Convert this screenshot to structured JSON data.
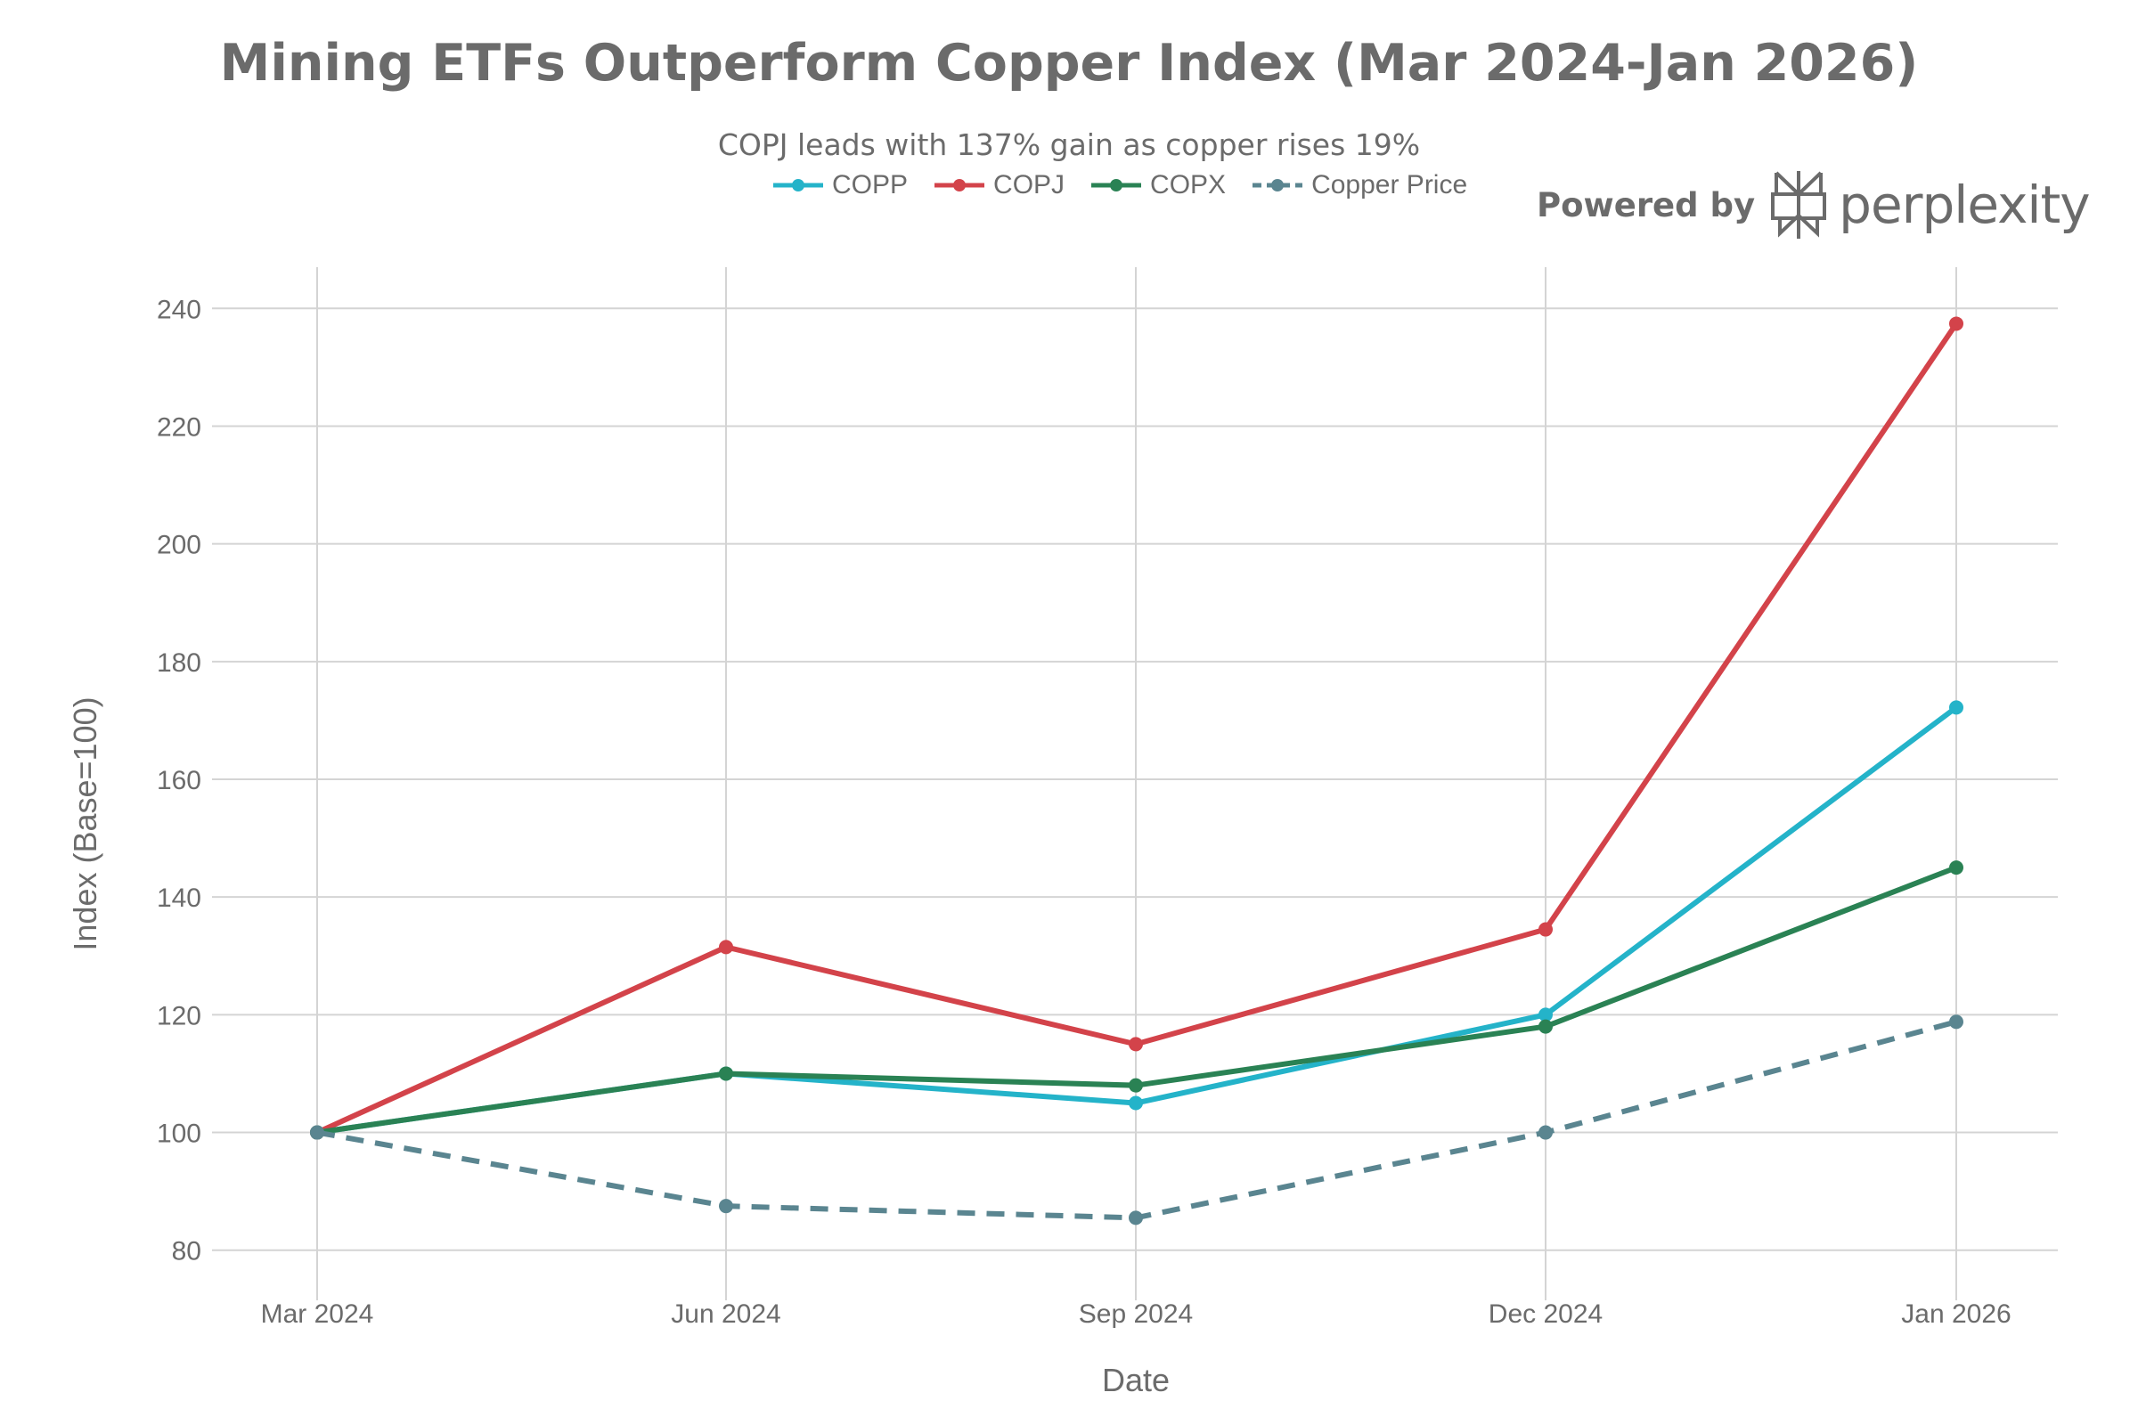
{
  "title": "Mining ETFs Outperform Copper Index (Mar 2024-Jan 2026)",
  "subtitle": "COPJ leads with 137% gain as copper rises 19%",
  "brand": {
    "prefix": "Powered by",
    "name": "perplexity",
    "icon": "perplexity-logo-icon"
  },
  "chart_data": {
    "type": "line",
    "x": [
      "Mar 2024",
      "Jun 2024",
      "Sep 2024",
      "Dec 2024",
      "Jan 2026"
    ],
    "xlabel": "Date",
    "ylabel": "Index (Base=100)",
    "ylim": [
      73,
      247
    ],
    "yticks": [
      80,
      100,
      120,
      140,
      160,
      180,
      200,
      220,
      240
    ],
    "grid": true,
    "legend_position": "top-center",
    "series": [
      {
        "name": "COPP",
        "color": "#24b3c9",
        "dash": "solid",
        "values": [
          100,
          110,
          105,
          120,
          172.2
        ]
      },
      {
        "name": "COPJ",
        "color": "#d3434a",
        "dash": "solid",
        "values": [
          100,
          131.5,
          115,
          134.5,
          237.4
        ]
      },
      {
        "name": "COPX",
        "color": "#2a8254",
        "dash": "solid",
        "values": [
          100,
          110,
          108,
          118,
          145
        ]
      },
      {
        "name": "Copper Price",
        "color": "#5a8590",
        "dash": "dashed",
        "values": [
          100,
          87.5,
          85.5,
          100,
          118.8
        ]
      }
    ]
  }
}
